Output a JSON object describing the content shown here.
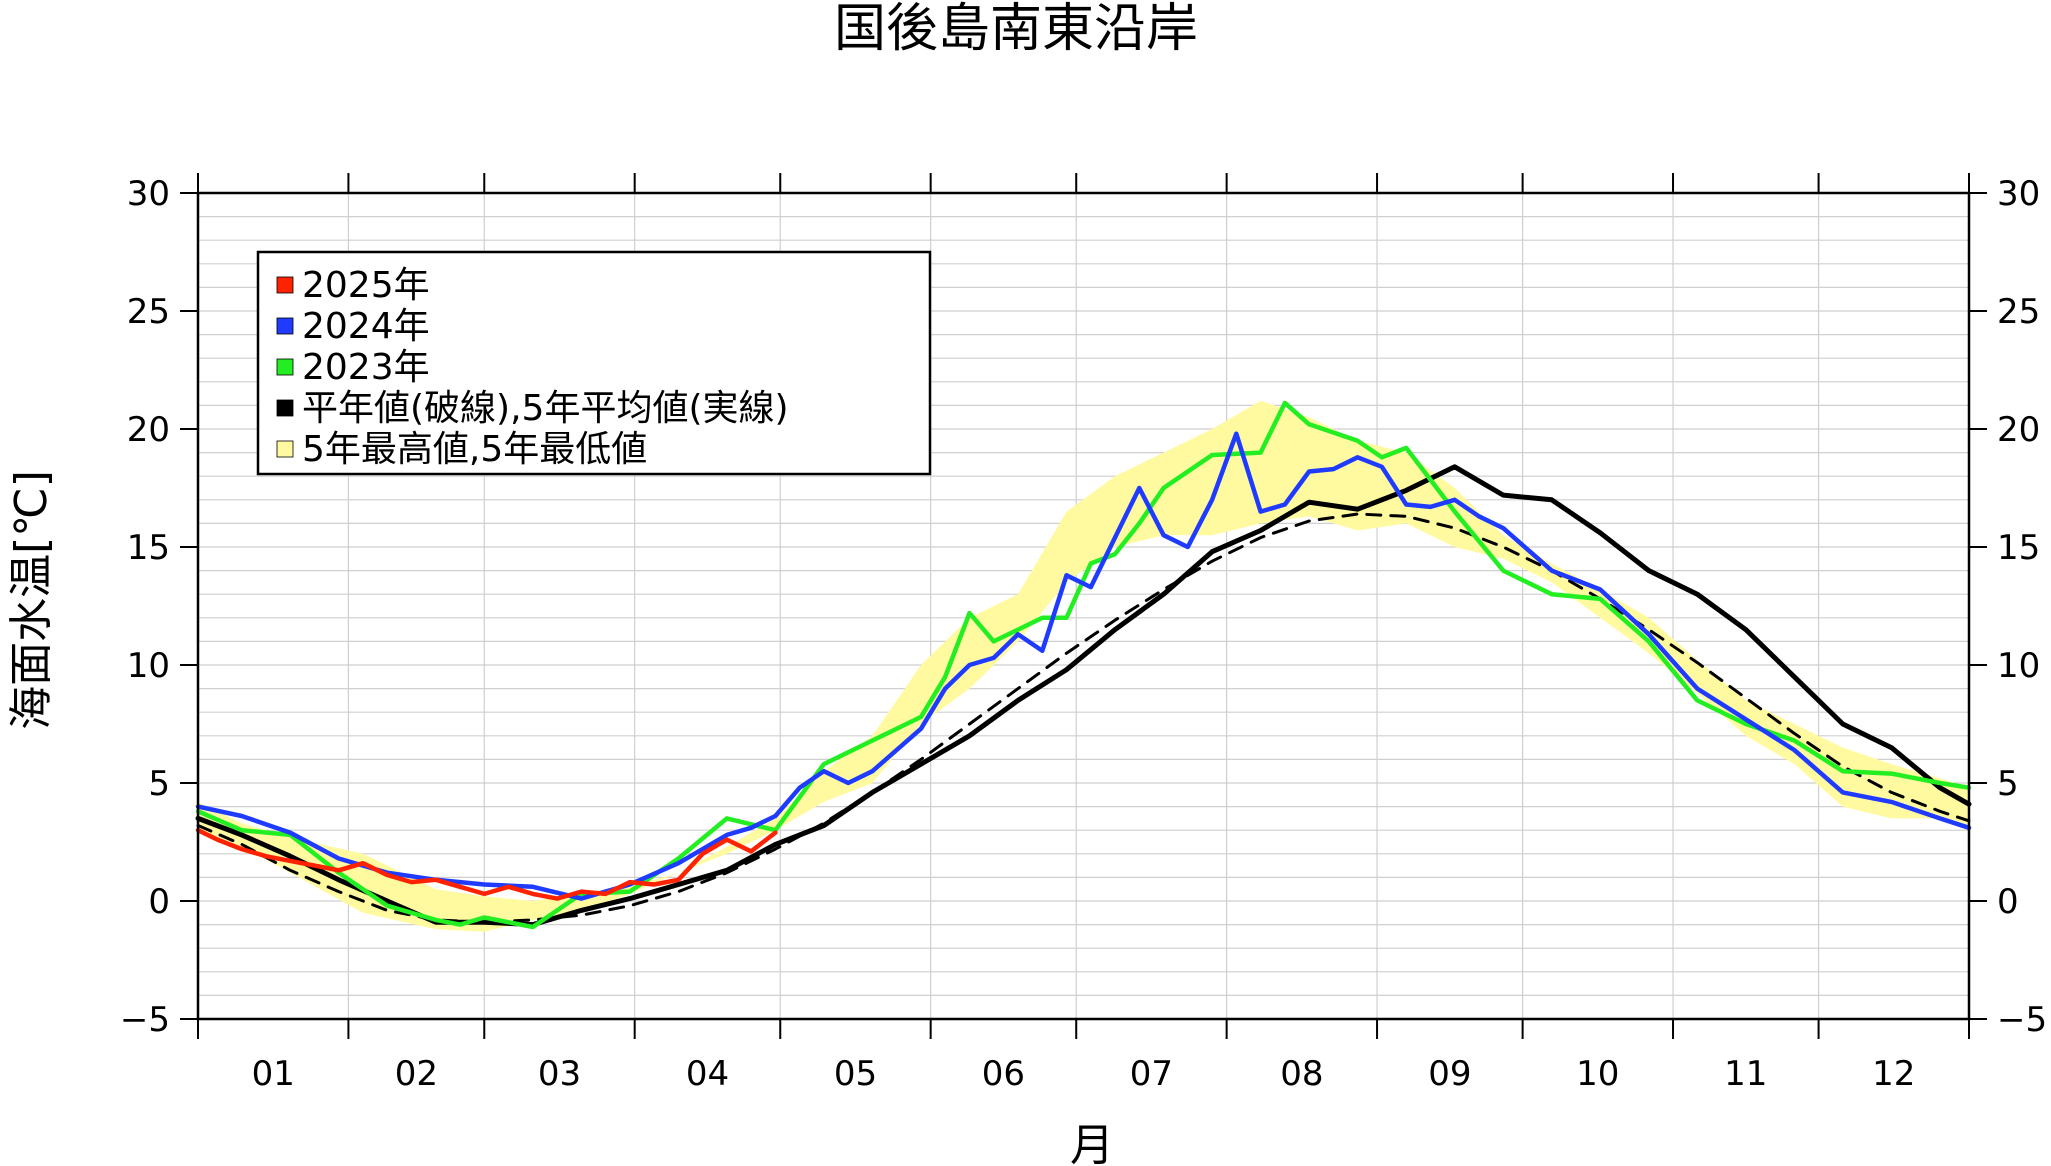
{
  "chart_data": {
    "type": "line",
    "title": "国後島南東沿岸",
    "xlabel": "月",
    "ylabel": "海面水温[℃]",
    "ylim": [
      -5,
      30
    ],
    "yticks": [
      30,
      25,
      20,
      15,
      10,
      5,
      0,
      -5
    ],
    "ytick_labels": [
      "30",
      "25",
      "20",
      "15",
      "10",
      "5",
      "0",
      "−5"
    ],
    "xticks": [
      "01",
      "02",
      "03",
      "04",
      "05",
      "06",
      "07",
      "08",
      "09",
      "10",
      "11",
      "12"
    ],
    "grid": true,
    "legend_position": "top-left",
    "legend": [
      {
        "label": "2025年",
        "color": "#ff2200"
      },
      {
        "label": "2024年",
        "color": "#1f3bff"
      },
      {
        "label": "2023年",
        "color": "#22ee22"
      },
      {
        "label": "平年値(破線),5年平均値(実線)",
        "color": "#000000"
      },
      {
        "label": "5年最高値,5年最低値",
        "color": "#fffaa0"
      }
    ],
    "series": [
      {
        "name": "5年最高値",
        "x": [
          1,
          10,
          20,
          35,
          50,
          60,
          70,
          80,
          90,
          100,
          110,
          120,
          130,
          140,
          150,
          160,
          170,
          180,
          190,
          200,
          210,
          220,
          230,
          240,
          250,
          260,
          270,
          280,
          290,
          300,
          310,
          320,
          330,
          340,
          350,
          360,
          366
        ],
        "y": [
          4.2,
          3.3,
          2.7,
          2.0,
          0.5,
          0.2,
          0.0,
          0.3,
          0.6,
          1.2,
          2.3,
          3.5,
          5.5,
          7.0,
          10.0,
          12.0,
          13.0,
          16.5,
          18.0,
          19.0,
          20.0,
          21.2,
          20.5,
          19.5,
          19.0,
          17.5,
          15.5,
          14.3,
          13.2,
          12.0,
          10.2,
          8.5,
          7.5,
          6.5,
          5.8,
          5.2,
          4.8
        ]
      },
      {
        "name": "5年最低値",
        "x": [
          1,
          10,
          20,
          35,
          50,
          60,
          70,
          80,
          90,
          100,
          110,
          120,
          130,
          140,
          150,
          160,
          170,
          180,
          190,
          200,
          210,
          220,
          230,
          240,
          250,
          260,
          270,
          280,
          290,
          300,
          310,
          320,
          330,
          340,
          350,
          360,
          366
        ],
        "y": [
          3.0,
          2.3,
          1.2,
          -0.5,
          -1.2,
          -1.3,
          -0.8,
          -0.5,
          0.3,
          1.2,
          2.0,
          3.0,
          4.2,
          5.0,
          7.5,
          9.0,
          11.0,
          13.5,
          15.0,
          15.5,
          15.5,
          16.0,
          16.3,
          15.7,
          16.0,
          15.0,
          14.5,
          13.5,
          12.0,
          10.5,
          8.8,
          7.0,
          5.8,
          4.0,
          3.5,
          3.5,
          3.0
        ]
      },
      {
        "name": "平年値",
        "x": [
          1,
          10,
          20,
          30,
          40,
          50,
          60,
          70,
          80,
          90,
          100,
          110,
          120,
          130,
          140,
          150,
          160,
          170,
          180,
          190,
          200,
          210,
          220,
          230,
          240,
          250,
          260,
          270,
          280,
          290,
          300,
          310,
          320,
          330,
          340,
          350,
          360,
          366
        ],
        "y": [
          3.2,
          2.4,
          1.3,
          0.4,
          -0.4,
          -0.8,
          -0.9,
          -0.8,
          -0.6,
          -0.2,
          0.4,
          1.2,
          2.2,
          3.3,
          4.6,
          6.0,
          7.5,
          9.0,
          10.5,
          11.9,
          13.2,
          14.4,
          15.4,
          16.1,
          16.4,
          16.3,
          15.8,
          15.0,
          14.0,
          12.8,
          11.5,
          10.1,
          8.6,
          7.1,
          5.7,
          4.6,
          3.8,
          3.4
        ]
      },
      {
        "name": "5年平均値",
        "x": [
          1,
          10,
          20,
          30,
          40,
          50,
          60,
          70,
          80,
          90,
          100,
          110,
          120,
          130,
          140,
          150,
          160,
          170,
          180,
          190,
          200,
          210,
          220,
          230,
          240,
          250,
          260,
          270,
          280,
          290,
          300,
          310,
          320,
          330,
          340,
          350,
          360,
          366
        ],
        "y": [
          3.5,
          2.8,
          1.9,
          0.9,
          0.0,
          -0.9,
          -0.9,
          -1.0,
          -0.4,
          0.1,
          0.7,
          1.3,
          2.4,
          3.2,
          4.6,
          5.8,
          7.0,
          8.5,
          9.8,
          11.5,
          13.0,
          14.8,
          15.7,
          16.9,
          16.6,
          17.4,
          18.4,
          17.2,
          17.0,
          15.6,
          14.0,
          13.0,
          11.5,
          9.5,
          7.5,
          6.5,
          4.8,
          4.1
        ]
      },
      {
        "name": "2023年",
        "x": [
          1,
          10,
          20,
          30,
          40,
          50,
          55,
          60,
          70,
          80,
          90,
          100,
          110,
          120,
          130,
          140,
          150,
          155,
          160,
          165,
          170,
          175,
          180,
          185,
          190,
          195,
          200,
          210,
          220,
          225,
          230,
          240,
          245,
          250,
          260,
          270,
          280,
          290,
          300,
          310,
          320,
          330,
          340,
          350,
          360,
          366
        ],
        "y": [
          3.8,
          3.0,
          2.8,
          1.2,
          -0.2,
          -0.8,
          -1.0,
          -0.7,
          -1.1,
          0.3,
          0.4,
          1.8,
          3.5,
          3.0,
          5.8,
          6.8,
          7.8,
          9.5,
          12.2,
          11.0,
          11.5,
          12.0,
          12.0,
          14.3,
          14.7,
          16.0,
          17.5,
          18.9,
          19.0,
          21.1,
          20.2,
          19.5,
          18.8,
          19.2,
          16.5,
          14.0,
          13.0,
          12.8,
          11.0,
          8.5,
          7.5,
          6.8,
          5.5,
          5.4,
          5.0,
          4.8
        ]
      },
      {
        "name": "2024年",
        "x": [
          1,
          10,
          20,
          30,
          40,
          50,
          60,
          70,
          80,
          90,
          100,
          110,
          115,
          120,
          125,
          130,
          135,
          140,
          150,
          155,
          160,
          165,
          170,
          175,
          180,
          185,
          190,
          195,
          200,
          205,
          210,
          215,
          220,
          225,
          230,
          235,
          240,
          245,
          250,
          255,
          260,
          265,
          270,
          280,
          290,
          300,
          310,
          320,
          330,
          340,
          350,
          360,
          366
        ],
        "y": [
          4.0,
          3.6,
          2.9,
          1.8,
          1.2,
          0.9,
          0.7,
          0.6,
          0.1,
          0.7,
          1.6,
          2.8,
          3.1,
          3.6,
          4.8,
          5.5,
          5.0,
          5.5,
          7.3,
          9.0,
          10.0,
          10.3,
          11.3,
          10.6,
          13.8,
          13.3,
          15.4,
          17.5,
          15.5,
          15.0,
          17.0,
          19.8,
          16.5,
          16.8,
          18.2,
          18.3,
          18.8,
          18.4,
          16.8,
          16.7,
          17.0,
          16.3,
          15.8,
          14.0,
          13.2,
          11.3,
          9.0,
          7.7,
          6.4,
          4.6,
          4.2,
          3.5,
          3.1
        ]
      },
      {
        "name": "2025年",
        "x": [
          1,
          5,
          10,
          15,
          20,
          25,
          30,
          35,
          40,
          45,
          50,
          55,
          60,
          65,
          70,
          75,
          80,
          85,
          90,
          95,
          100,
          105,
          110,
          115,
          120
        ],
        "y": [
          3.0,
          2.6,
          2.2,
          1.9,
          1.7,
          1.5,
          1.3,
          1.6,
          1.1,
          0.8,
          0.9,
          0.6,
          0.3,
          0.6,
          0.3,
          0.1,
          0.4,
          0.3,
          0.8,
          0.7,
          0.9,
          2.0,
          2.6,
          2.1,
          2.9
        ]
      }
    ]
  }
}
